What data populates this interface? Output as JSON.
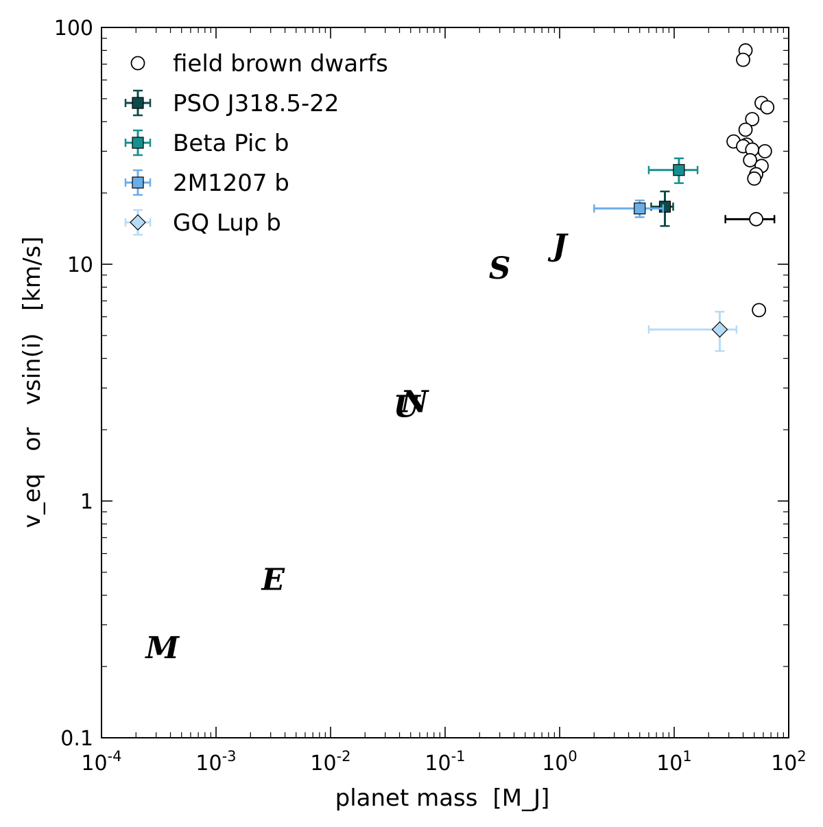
{
  "chart_data": {
    "type": "scatter",
    "title": "",
    "xlabel": "planet mass",
    "xlabel_unit": "[M_J]",
    "ylabel": "v_eq   or   vsin(i)   [km/s]",
    "xscale": "log",
    "yscale": "log",
    "xlim": [
      0.0001,
      100
    ],
    "ylim": [
      0.1,
      100
    ],
    "x_ticks": [
      {
        "value": 0.0001,
        "base": "10",
        "exp": "-4"
      },
      {
        "value": 0.001,
        "base": "10",
        "exp": "-3"
      },
      {
        "value": 0.01,
        "base": "10",
        "exp": "-2"
      },
      {
        "value": 0.1,
        "base": "10",
        "exp": "-1"
      },
      {
        "value": 1,
        "base": "10",
        "exp": "0"
      },
      {
        "value": 10,
        "base": "10",
        "exp": "1"
      },
      {
        "value": 100,
        "base": "10",
        "exp": "2"
      }
    ],
    "y_ticks": [
      {
        "value": 0.1,
        "label": "0.1"
      },
      {
        "value": 1,
        "label": "1"
      },
      {
        "value": 10,
        "label": "10"
      },
      {
        "value": 100,
        "label": "100"
      }
    ],
    "legend_position": "top-left",
    "series": [
      {
        "name": "field brown dwarfs",
        "marker": "circle-open",
        "color": "#000000",
        "points": [
          {
            "x": 42,
            "y": 80
          },
          {
            "x": 40,
            "y": 73
          },
          {
            "x": 58,
            "y": 48
          },
          {
            "x": 65,
            "y": 46
          },
          {
            "x": 48,
            "y": 41
          },
          {
            "x": 42,
            "y": 37
          },
          {
            "x": 33,
            "y": 33
          },
          {
            "x": 43,
            "y": 32
          },
          {
            "x": 40,
            "y": 31.5
          },
          {
            "x": 48,
            "y": 30.5
          },
          {
            "x": 62,
            "y": 30
          },
          {
            "x": 46,
            "y": 27.5
          },
          {
            "x": 58,
            "y": 26
          },
          {
            "x": 52,
            "y": 24
          },
          {
            "x": 50,
            "y": 23
          },
          {
            "x": 52,
            "y": 15.5,
            "xerr_lo": 28,
            "xerr_hi": 75
          },
          {
            "x": 55,
            "y": 6.4
          }
        ]
      },
      {
        "name": "PSO J318.5-22",
        "marker": "square",
        "color": "#0d4a4a",
        "points": [
          {
            "x": 8.3,
            "y": 17.5,
            "xerr_lo": 6.3,
            "xerr_hi": 9.8,
            "yerr_lo": 14.5,
            "yerr_hi": 20.3
          }
        ]
      },
      {
        "name": "Beta Pic b",
        "marker": "square",
        "color": "#178f8f",
        "points": [
          {
            "x": 11,
            "y": 25,
            "xerr_lo": 6,
            "xerr_hi": 16,
            "yerr_lo": 22,
            "yerr_hi": 28
          }
        ]
      },
      {
        "name": "2M1207 b",
        "marker": "square",
        "color": "#6aaee8",
        "points": [
          {
            "x": 5,
            "y": 17.2,
            "xerr_lo": 2,
            "xerr_hi": 8,
            "yerr_lo": 15.8,
            "yerr_hi": 18.6
          }
        ]
      },
      {
        "name": "GQ Lup b",
        "marker": "diamond",
        "color": "#b7dbf5",
        "points": [
          {
            "x": 25,
            "y": 5.3,
            "xerr_lo": 6,
            "xerr_hi": 35,
            "yerr_lo": 4.3,
            "yerr_hi": 6.3
          }
        ]
      }
    ],
    "annotations": [
      {
        "text": "J",
        "x": 1.0,
        "y": 12
      },
      {
        "text": "S",
        "x": 0.3,
        "y": 9.6
      },
      {
        "text": "U",
        "x": 0.046,
        "y": 2.5
      },
      {
        "text": "N",
        "x": 0.054,
        "y": 2.62
      },
      {
        "text": "E",
        "x": 0.00315,
        "y": 0.465
      },
      {
        "text": "M",
        "x": 0.00034,
        "y": 0.24
      }
    ]
  }
}
